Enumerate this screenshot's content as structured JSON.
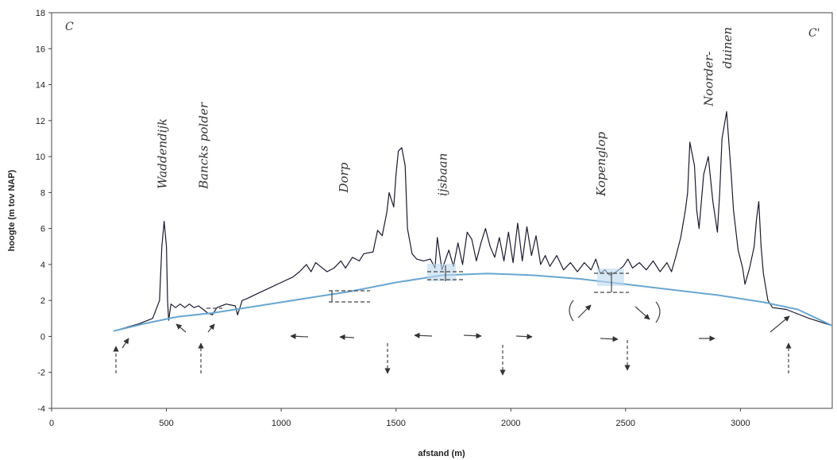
{
  "chart_data": {
    "type": "line",
    "title": "",
    "xlabel": "afstand (m)",
    "ylabel": "hoogte (m tov NAP)",
    "xlim": [
      0,
      3400
    ],
    "ylim": [
      -4,
      18
    ],
    "x_ticks": [
      0,
      500,
      1000,
      1500,
      2000,
      2500,
      3000
    ],
    "y_ticks": [
      -4,
      -2,
      0,
      2,
      4,
      6,
      8,
      10,
      12,
      14,
      16,
      18
    ],
    "grid": false,
    "legend": "none",
    "series": [
      {
        "color": "#1a1a2e",
        "points": [
          [
            270,
            0.3
          ],
          [
            380,
            0.7
          ],
          [
            440,
            1.0
          ],
          [
            470,
            2.0
          ],
          [
            480,
            5.0
          ],
          [
            490,
            6.4
          ],
          [
            500,
            5.0
          ],
          [
            505,
            2.0
          ],
          [
            510,
            0.9
          ],
          [
            520,
            1.8
          ],
          [
            540,
            1.6
          ],
          [
            560,
            1.8
          ],
          [
            580,
            1.6
          ],
          [
            600,
            1.8
          ],
          [
            620,
            1.6
          ],
          [
            640,
            1.7
          ],
          [
            660,
            1.5
          ],
          [
            680,
            1.3
          ],
          [
            700,
            1.2
          ],
          [
            720,
            1.6
          ],
          [
            760,
            1.8
          ],
          [
            800,
            1.7
          ],
          [
            810,
            1.2
          ],
          [
            830,
            2.0
          ],
          [
            850,
            2.1
          ],
          [
            900,
            2.4
          ],
          [
            950,
            2.7
          ],
          [
            1000,
            3.0
          ],
          [
            1050,
            3.3
          ],
          [
            1080,
            3.6
          ],
          [
            1110,
            4.0
          ],
          [
            1130,
            3.6
          ],
          [
            1150,
            4.1
          ],
          [
            1170,
            3.9
          ],
          [
            1200,
            3.6
          ],
          [
            1230,
            3.8
          ],
          [
            1260,
            4.2
          ],
          [
            1280,
            3.8
          ],
          [
            1310,
            4.4
          ],
          [
            1340,
            4.2
          ],
          [
            1360,
            4.6
          ],
          [
            1400,
            4.7
          ],
          [
            1420,
            5.9
          ],
          [
            1440,
            5.6
          ],
          [
            1460,
            6.9
          ],
          [
            1470,
            8.0
          ],
          [
            1490,
            7.2
          ],
          [
            1500,
            9.0
          ],
          [
            1510,
            10.3
          ],
          [
            1525,
            10.5
          ],
          [
            1540,
            9.5
          ],
          [
            1550,
            6.0
          ],
          [
            1570,
            4.6
          ],
          [
            1590,
            4.3
          ],
          [
            1620,
            4.2
          ],
          [
            1650,
            4.3
          ],
          [
            1670,
            3.8
          ],
          [
            1680,
            5.5
          ],
          [
            1700,
            3.7
          ],
          [
            1730,
            4.8
          ],
          [
            1750,
            3.9
          ],
          [
            1770,
            5.2
          ],
          [
            1790,
            4.0
          ],
          [
            1810,
            5.8
          ],
          [
            1830,
            5.4
          ],
          [
            1850,
            4.2
          ],
          [
            1870,
            5.2
          ],
          [
            1890,
            6.0
          ],
          [
            1910,
            5.0
          ],
          [
            1930,
            4.4
          ],
          [
            1950,
            5.5
          ],
          [
            1970,
            4.2
          ],
          [
            1990,
            5.8
          ],
          [
            2010,
            4.1
          ],
          [
            2030,
            6.3
          ],
          [
            2050,
            4.2
          ],
          [
            2070,
            6.1
          ],
          [
            2090,
            4.5
          ],
          [
            2110,
            5.6
          ],
          [
            2130,
            4.0
          ],
          [
            2150,
            4.5
          ],
          [
            2170,
            3.9
          ],
          [
            2200,
            4.5
          ],
          [
            2230,
            3.7
          ],
          [
            2260,
            4.1
          ],
          [
            2290,
            3.6
          ],
          [
            2320,
            4.1
          ],
          [
            2350,
            3.7
          ],
          [
            2370,
            4.3
          ],
          [
            2390,
            3.5
          ],
          [
            2410,
            3.7
          ],
          [
            2430,
            3.4
          ],
          [
            2460,
            3.6
          ],
          [
            2490,
            3.9
          ],
          [
            2510,
            4.3
          ],
          [
            2530,
            3.8
          ],
          [
            2560,
            4.1
          ],
          [
            2590,
            3.7
          ],
          [
            2620,
            4.2
          ],
          [
            2650,
            3.6
          ],
          [
            2680,
            4.1
          ],
          [
            2700,
            3.6
          ],
          [
            2720,
            4.5
          ],
          [
            2740,
            5.5
          ],
          [
            2760,
            7.0
          ],
          [
            2770,
            8.0
          ],
          [
            2780,
            10.8
          ],
          [
            2800,
            9.5
          ],
          [
            2810,
            7.0
          ],
          [
            2820,
            6.0
          ],
          [
            2840,
            9.0
          ],
          [
            2860,
            10.0
          ],
          [
            2880,
            7.5
          ],
          [
            2900,
            5.8
          ],
          [
            2910,
            8.0
          ],
          [
            2920,
            11.0
          ],
          [
            2940,
            12.5
          ],
          [
            2960,
            9.0
          ],
          [
            2970,
            7.0
          ],
          [
            2990,
            4.8
          ],
          [
            3010,
            3.8
          ],
          [
            3020,
            2.9
          ],
          [
            3040,
            3.8
          ],
          [
            3060,
            5.0
          ],
          [
            3070,
            6.5
          ],
          [
            3080,
            7.5
          ],
          [
            3090,
            5.0
          ],
          [
            3100,
            3.5
          ],
          [
            3120,
            2.0
          ],
          [
            3140,
            1.6
          ],
          [
            3200,
            1.5
          ],
          [
            3300,
            1.0
          ],
          [
            3400,
            0.6
          ]
        ]
      },
      {
        "color": "#6aa6d0",
        "points": [
          [
            270,
            0.3
          ],
          [
            400,
            0.7
          ],
          [
            550,
            1.1
          ],
          [
            700,
            1.3
          ],
          [
            900,
            1.7
          ],
          [
            1100,
            2.1
          ],
          [
            1300,
            2.5
          ],
          [
            1500,
            3.0
          ],
          [
            1700,
            3.4
          ],
          [
            1900,
            3.5
          ],
          [
            2100,
            3.4
          ],
          [
            2300,
            3.2
          ],
          [
            2500,
            2.9
          ],
          [
            2700,
            2.6
          ],
          [
            2900,
            2.3
          ],
          [
            3100,
            1.9
          ],
          [
            3250,
            1.5
          ],
          [
            3400,
            0.6
          ]
        ]
      }
    ],
    "annotations": {
      "corner_left": "C",
      "corner_right": "C'",
      "labels": [
        {
          "text": "Waddendijk",
          "x": 500,
          "y": 8.2
        },
        {
          "text": "Bancks polder",
          "x": 680,
          "y": 8.2
        },
        {
          "text": "Dorp",
          "x": 1290,
          "y": 8.0
        },
        {
          "text": "ijsbaan",
          "x": 1720,
          "y": 7.8
        },
        {
          "text": "Kopenglop",
          "x": 2410,
          "y": 7.8
        },
        {
          "text": "Noorder-",
          "x": 2880,
          "y": 12.8
        },
        {
          "text": "duinen",
          "x": 2960,
          "y": 14.9
        }
      ]
    }
  }
}
